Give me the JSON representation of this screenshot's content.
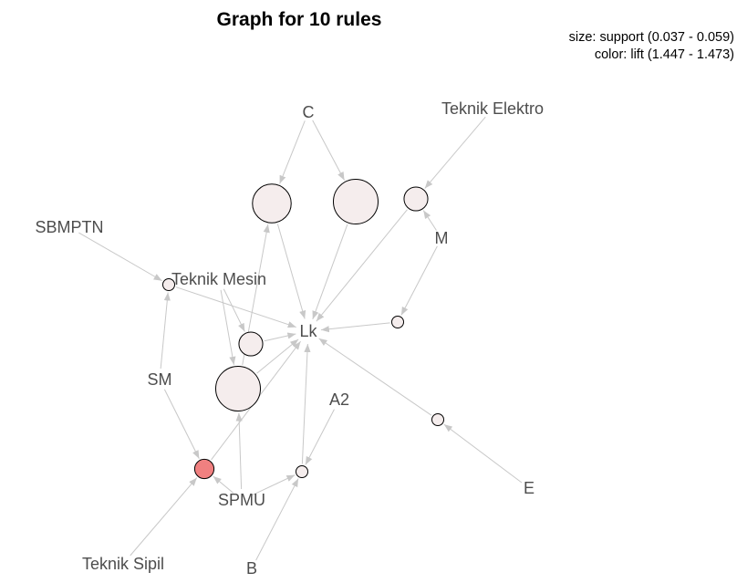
{
  "title": "Graph for 10 rules",
  "legend": {
    "size_text": "size: support (0.037 - 0.059)",
    "color_text": "color: lift (1.447 - 1.473)"
  },
  "colors": {
    "edge": "#c8c8c8",
    "rule_fill_low": "#f5eded",
    "rule_fill_high": "#f08080",
    "label": "#4d4d4d"
  },
  "items": [
    {
      "id": "C",
      "label": "C"
    },
    {
      "id": "TE",
      "label": "Teknik Elektro"
    },
    {
      "id": "SB",
      "label": "SBMPTN"
    },
    {
      "id": "M",
      "label": "M"
    },
    {
      "id": "TM",
      "label": "Teknik Mesin"
    },
    {
      "id": "Lk",
      "label": "Lk"
    },
    {
      "id": "SM",
      "label": "SM"
    },
    {
      "id": "A2",
      "label": "A2"
    },
    {
      "id": "SPMU",
      "label": "SPMU"
    },
    {
      "id": "E",
      "label": "E"
    },
    {
      "id": "TS",
      "label": "Teknik Sipil"
    },
    {
      "id": "B",
      "label": "B"
    }
  ],
  "rules": [
    {
      "id": "r1",
      "support": 0.055,
      "lift": 1.45
    },
    {
      "id": "r2",
      "support": 0.059,
      "lift": 1.45
    },
    {
      "id": "r3",
      "support": 0.045,
      "lift": 1.45
    },
    {
      "id": "r4",
      "support": 0.037,
      "lift": 1.45
    },
    {
      "id": "r5",
      "support": 0.037,
      "lift": 1.45
    },
    {
      "id": "r6",
      "support": 0.045,
      "lift": 1.45
    },
    {
      "id": "r7",
      "support": 0.059,
      "lift": 1.45
    },
    {
      "id": "r8",
      "support": 0.037,
      "lift": 1.45
    },
    {
      "id": "r9",
      "support": 0.042,
      "lift": 1.473
    },
    {
      "id": "r10",
      "support": 0.037,
      "lift": 1.45
    }
  ],
  "edges": [
    [
      "C",
      "r1"
    ],
    [
      "r1",
      "Lk"
    ],
    [
      "C",
      "r2"
    ],
    [
      "r2",
      "Lk"
    ],
    [
      "TE",
      "r3"
    ],
    [
      "M",
      "r3"
    ],
    [
      "r3",
      "Lk"
    ],
    [
      "SB",
      "r4"
    ],
    [
      "SM",
      "r4"
    ],
    [
      "r4",
      "Lk"
    ],
    [
      "M",
      "r5"
    ],
    [
      "r5",
      "Lk"
    ],
    [
      "TM",
      "r6"
    ],
    [
      "r6",
      "Lk"
    ],
    [
      "TM",
      "r7"
    ],
    [
      "SPMU",
      "r7"
    ],
    [
      "r7",
      "Lk"
    ],
    [
      "E",
      "r8"
    ],
    [
      "r8",
      "Lk"
    ],
    [
      "SM",
      "r9"
    ],
    [
      "TS",
      "r9"
    ],
    [
      "SPMU",
      "r9"
    ],
    [
      "r9",
      "Lk"
    ],
    [
      "A2",
      "r10"
    ],
    [
      "B",
      "r10"
    ],
    [
      "SPMU",
      "r10"
    ],
    [
      "r10",
      "Lk"
    ],
    [
      "r7",
      "r1"
    ]
  ]
}
